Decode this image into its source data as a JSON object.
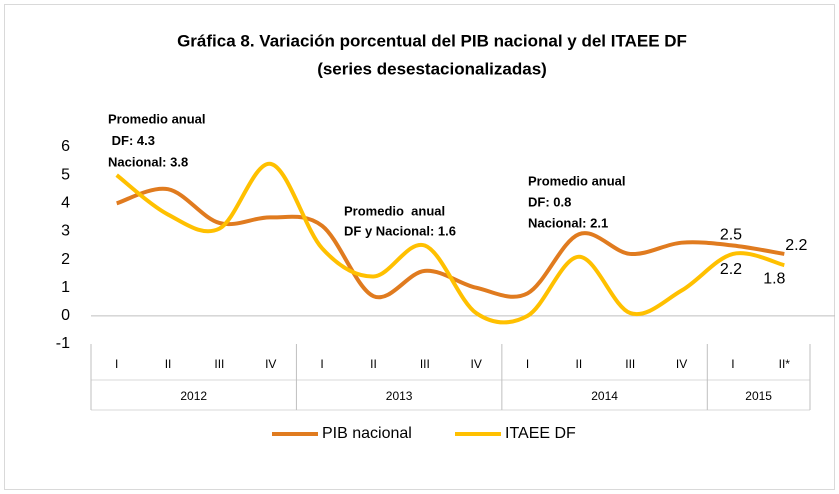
{
  "chart_data": {
    "type": "line",
    "title": [
      "Gráfica 8. Variación porcentual del PIB nacional y del ITAEE DF",
      "(series desestacionalizadas)"
    ],
    "groups": [
      {
        "label": "2012",
        "categories": [
          "I",
          "II",
          "III",
          "IV"
        ]
      },
      {
        "label": "2013",
        "categories": [
          "I",
          "II",
          "III",
          "IV"
        ]
      },
      {
        "label": "2014",
        "categories": [
          "I",
          "II",
          "III",
          "IV"
        ]
      },
      {
        "label": "2015",
        "categories": [
          "I",
          "II*"
        ]
      }
    ],
    "series": [
      {
        "name": "PIB nacional",
        "color": "#e07b1f",
        "values": [
          4.0,
          4.5,
          3.3,
          3.5,
          3.2,
          0.7,
          1.6,
          1.0,
          0.8,
          2.9,
          2.2,
          2.6,
          2.5,
          2.2
        ],
        "value_labels": [
          null,
          null,
          null,
          null,
          null,
          null,
          null,
          null,
          null,
          null,
          null,
          null,
          "2.5",
          "2.2"
        ]
      },
      {
        "name": "ITAEE DF",
        "color": "#ffc000",
        "values": [
          5.0,
          3.6,
          3.1,
          5.4,
          2.4,
          1.4,
          2.5,
          0.1,
          0.0,
          2.1,
          0.1,
          0.9,
          2.2,
          1.8
        ],
        "value_labels": [
          null,
          null,
          null,
          null,
          null,
          null,
          null,
          null,
          null,
          null,
          null,
          null,
          "2.2",
          "1.8"
        ]
      }
    ],
    "annotations": [
      {
        "lines": [
          "Promedio anual",
          " DF: 4.3",
          "Nacional: 3.8"
        ]
      },
      {
        "lines": [
          "Promedio  anual",
          "DF y Nacional: 1.6"
        ]
      },
      {
        "lines": [
          "Promedio anual",
          "DF: 0.8",
          "Nacional: 2.1"
        ]
      }
    ],
    "ylim": [
      -1,
      6
    ],
    "yticks": [
      -1,
      0,
      1,
      2,
      3,
      4,
      5,
      6
    ],
    "legend": "bottom"
  }
}
